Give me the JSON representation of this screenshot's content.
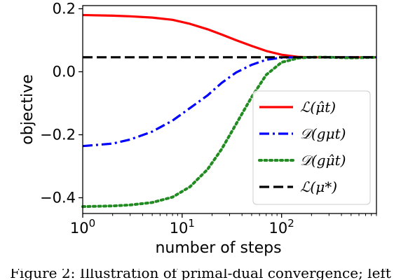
{
  "chart_data": {
    "type": "line",
    "title": "",
    "xlabel": "number of steps",
    "ylabel": "objective",
    "xscale": "log",
    "xlim": [
      1,
      900
    ],
    "ylim": [
      -0.45,
      0.21
    ],
    "x_ticks": [
      {
        "value": 1,
        "label": "10",
        "exp": "0"
      },
      {
        "value": 10,
        "label": "10",
        "exp": "1"
      },
      {
        "value": 100,
        "label": "10",
        "exp": "2"
      }
    ],
    "y_ticks": [
      {
        "value": 0.2,
        "label": "0.2"
      },
      {
        "value": 0.0,
        "label": "0.0"
      },
      {
        "value": -0.2,
        "label": "−0.2"
      },
      {
        "value": -0.4,
        "label": "−0.4"
      }
    ],
    "grid": false,
    "legend_position": "lower-right",
    "series": [
      {
        "name": "ℒ(μ̂t)",
        "color": "#ff0000",
        "style": "solid",
        "x": [
          1,
          2,
          3,
          5,
          8,
          12,
          18,
          25,
          35,
          50,
          70,
          100,
          150,
          200,
          300,
          500,
          900
        ],
        "y": [
          0.18,
          0.178,
          0.176,
          0.172,
          0.165,
          0.152,
          0.135,
          0.118,
          0.1,
          0.082,
          0.066,
          0.054,
          0.047,
          0.046,
          0.046,
          0.046,
          0.046
        ]
      },
      {
        "name": "𝒟(gμt)",
        "color": "#0000ff",
        "style": "dashdot",
        "x": [
          1,
          2,
          3,
          5,
          8,
          12,
          18,
          25,
          35,
          50,
          70,
          100,
          150,
          200,
          300,
          500,
          900
        ],
        "y": [
          -0.236,
          -0.228,
          -0.215,
          -0.19,
          -0.155,
          -0.115,
          -0.075,
          -0.035,
          -0.002,
          0.022,
          0.038,
          0.045,
          0.046,
          0.046,
          0.046,
          0.046,
          0.046
        ]
      },
      {
        "name": "𝒟(gμ̂t)",
        "color": "#228b22",
        "style": "dotted",
        "x": [
          1,
          2,
          3,
          5,
          8,
          12,
          18,
          25,
          35,
          50,
          70,
          100,
          150,
          200,
          300,
          500,
          900
        ],
        "y": [
          -0.428,
          -0.426,
          -0.423,
          -0.415,
          -0.398,
          -0.365,
          -0.31,
          -0.245,
          -0.165,
          -0.08,
          -0.01,
          0.03,
          0.044,
          0.046,
          0.046,
          0.044,
          0.046
        ]
      },
      {
        "name": "ℒ(μ*)",
        "color": "#000000",
        "style": "dashed",
        "x": [
          1,
          900
        ],
        "y": [
          0.046,
          0.046
        ]
      }
    ]
  },
  "caption": "Figure 2: Illustration of primal-dual convergence; left"
}
